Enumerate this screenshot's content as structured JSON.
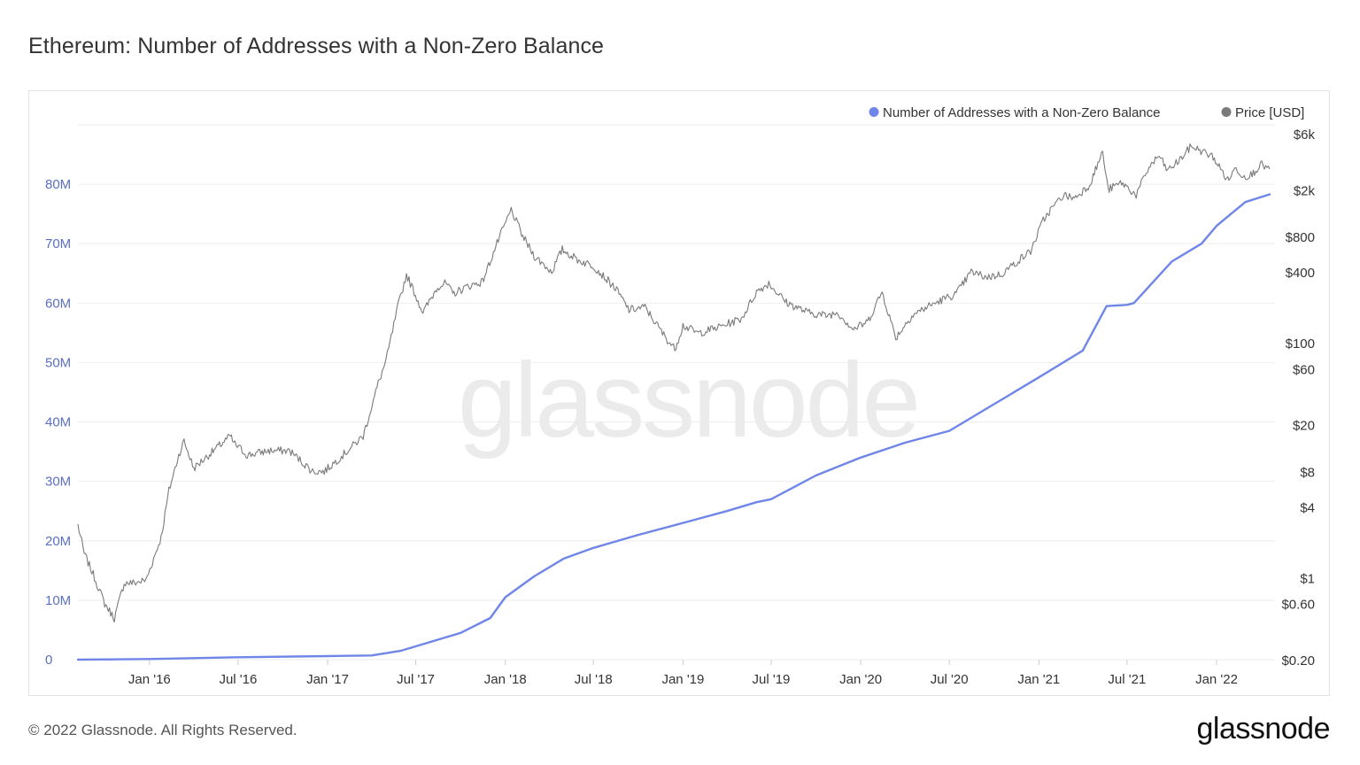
{
  "title": "Ethereum: Number of Addresses with a Non-Zero Balance",
  "footer": {
    "copyright": "© 2022 Glassnode. All Rights Reserved.",
    "logo": "glassnode"
  },
  "watermark": "glassnode",
  "colors": {
    "addresses": "#6f86e8",
    "price": "#7a7a7a",
    "grid": "#eeeeee",
    "left_axis_text": "#5a6fc0"
  },
  "chart_data": {
    "type": "line",
    "title": "Ethereum: Number of Addresses with a Non-Zero Balance",
    "legend_position": "top-right",
    "grid": true,
    "x_range": [
      "2015-08-07",
      "2022-05-01"
    ],
    "x_ticks": [
      {
        "date": "2016-01-01",
        "label": "Jan '16"
      },
      {
        "date": "2016-07-01",
        "label": "Jul '16"
      },
      {
        "date": "2017-01-01",
        "label": "Jan '17"
      },
      {
        "date": "2017-07-01",
        "label": "Jul '17"
      },
      {
        "date": "2018-01-01",
        "label": "Jan '18"
      },
      {
        "date": "2018-07-01",
        "label": "Jul '18"
      },
      {
        "date": "2019-01-01",
        "label": "Jan '19"
      },
      {
        "date": "2019-07-01",
        "label": "Jul '19"
      },
      {
        "date": "2020-01-01",
        "label": "Jan '20"
      },
      {
        "date": "2020-07-01",
        "label": "Jul '20"
      },
      {
        "date": "2021-01-01",
        "label": "Jan '21"
      },
      {
        "date": "2021-07-01",
        "label": "Jul '21"
      },
      {
        "date": "2022-01-01",
        "label": "Jan '22"
      }
    ],
    "y_left": {
      "range": [
        0,
        90000000
      ],
      "ticks": [
        {
          "value": 0,
          "label": "0"
        },
        {
          "value": 10000000,
          "label": "10M"
        },
        {
          "value": 20000000,
          "label": "20M"
        },
        {
          "value": 30000000,
          "label": "30M"
        },
        {
          "value": 40000000,
          "label": "40M"
        },
        {
          "value": 50000000,
          "label": "50M"
        },
        {
          "value": 60000000,
          "label": "60M"
        },
        {
          "value": 70000000,
          "label": "70M"
        },
        {
          "value": 80000000,
          "label": "80M"
        }
      ]
    },
    "y_right": {
      "scale": "log",
      "range": [
        0.2,
        6000
      ],
      "ticks": [
        {
          "value": 0.2,
          "label": "$0.20"
        },
        {
          "value": 0.6,
          "label": "$0.60"
        },
        {
          "value": 1,
          "label": "$1"
        },
        {
          "value": 4,
          "label": "$4"
        },
        {
          "value": 8,
          "label": "$8"
        },
        {
          "value": 20,
          "label": "$20"
        },
        {
          "value": 60,
          "label": "$60"
        },
        {
          "value": 100,
          "label": "$100"
        },
        {
          "value": 400,
          "label": "$400"
        },
        {
          "value": 800,
          "label": "$800"
        },
        {
          "value": 2000,
          "label": "$2k"
        },
        {
          "value": 6000,
          "label": "$6k"
        }
      ]
    },
    "series": [
      {
        "name": "Number of Addresses with a Non-Zero Balance",
        "axis": "left",
        "x": [
          "2015-08-07",
          "2016-01-01",
          "2016-07-01",
          "2017-01-01",
          "2017-04-01",
          "2017-06-01",
          "2017-08-01",
          "2017-10-01",
          "2017-12-01",
          "2018-01-01",
          "2018-03-01",
          "2018-05-01",
          "2018-07-01",
          "2018-10-01",
          "2019-01-01",
          "2019-04-01",
          "2019-06-01",
          "2019-07-01",
          "2019-10-01",
          "2020-01-01",
          "2020-04-01",
          "2020-07-01",
          "2020-10-01",
          "2021-01-01",
          "2021-04-01",
          "2021-05-20",
          "2021-07-01",
          "2021-07-15",
          "2021-10-01",
          "2021-12-01",
          "2022-01-01",
          "2022-03-01",
          "2022-04-20"
        ],
        "values": [
          0,
          100000,
          400000,
          600000,
          700000,
          1500000,
          3000000,
          4500000,
          7000000,
          10500000,
          14000000,
          17000000,
          18800000,
          21000000,
          23000000,
          25000000,
          26500000,
          27000000,
          31000000,
          34000000,
          36500000,
          38500000,
          43000000,
          47500000,
          52000000,
          59500000,
          59700000,
          60000000,
          67000000,
          70000000,
          73000000,
          77000000,
          78300000
        ]
      },
      {
        "name": "Price [USD]",
        "axis": "right",
        "x": [
          "2015-08-07",
          "2015-08-20",
          "2015-09-10",
          "2015-10-01",
          "2015-10-21",
          "2015-11-10",
          "2015-12-01",
          "2015-12-25",
          "2016-01-25",
          "2016-02-10",
          "2016-03-01",
          "2016-03-12",
          "2016-04-01",
          "2016-05-01",
          "2016-06-15",
          "2016-06-22",
          "2016-07-20",
          "2016-09-01",
          "2016-10-15",
          "2016-12-01",
          "2016-12-25",
          "2017-02-01",
          "2017-03-15",
          "2017-04-15",
          "2017-05-01",
          "2017-05-25",
          "2017-06-12",
          "2017-07-16",
          "2017-08-15",
          "2017-09-01",
          "2017-09-15",
          "2017-10-15",
          "2017-11-15",
          "2017-12-15",
          "2018-01-13",
          "2018-02-06",
          "2018-03-01",
          "2018-04-06",
          "2018-04-28",
          "2018-06-01",
          "2018-07-01",
          "2018-08-15",
          "2018-09-12",
          "2018-10-15",
          "2018-11-20",
          "2018-12-15",
          "2019-01-01",
          "2019-02-01",
          "2019-03-15",
          "2019-05-01",
          "2019-06-01",
          "2019-06-26",
          "2019-08-01",
          "2019-09-15",
          "2019-10-22",
          "2019-11-15",
          "2019-12-17",
          "2020-01-15",
          "2020-02-14",
          "2020-03-13",
          "2020-04-15",
          "2020-05-15",
          "2020-06-15",
          "2020-07-15",
          "2020-08-15",
          "2020-09-15",
          "2020-10-15",
          "2020-11-20",
          "2020-12-15",
          "2021-01-10",
          "2021-01-22",
          "2021-02-20",
          "2021-03-15",
          "2021-04-15",
          "2021-05-12",
          "2021-05-23",
          "2021-06-20",
          "2021-07-20",
          "2021-08-15",
          "2021-09-05",
          "2021-09-22",
          "2021-10-15",
          "2021-11-10",
          "2021-12-05",
          "2021-12-25",
          "2022-01-24",
          "2022-02-10",
          "2022-02-24",
          "2022-03-15",
          "2022-04-01",
          "2022-04-20"
        ],
        "values": [
          2.8,
          1.6,
          1.0,
          0.6,
          0.45,
          0.9,
          0.9,
          0.95,
          2.2,
          5.5,
          11,
          14.5,
          8.5,
          11,
          16,
          14,
          11,
          12,
          12,
          8,
          8,
          11,
          16,
          45,
          70,
          200,
          380,
          180,
          300,
          320,
          260,
          300,
          330,
          700,
          1350,
          800,
          550,
          400,
          620,
          500,
          450,
          290,
          190,
          200,
          120,
          88,
          140,
          120,
          135,
          160,
          270,
          320,
          220,
          180,
          170,
          180,
          130,
          150,
          270,
          110,
          170,
          200,
          230,
          260,
          400,
          360,
          380,
          500,
          600,
          1100,
          1300,
          1800,
          1700,
          2200,
          4200,
          2000,
          2300,
          1800,
          3100,
          3900,
          2900,
          3500,
          4700,
          4200,
          3800,
          2400,
          3100,
          2600,
          2700,
          3300,
          3000
        ]
      }
    ]
  }
}
